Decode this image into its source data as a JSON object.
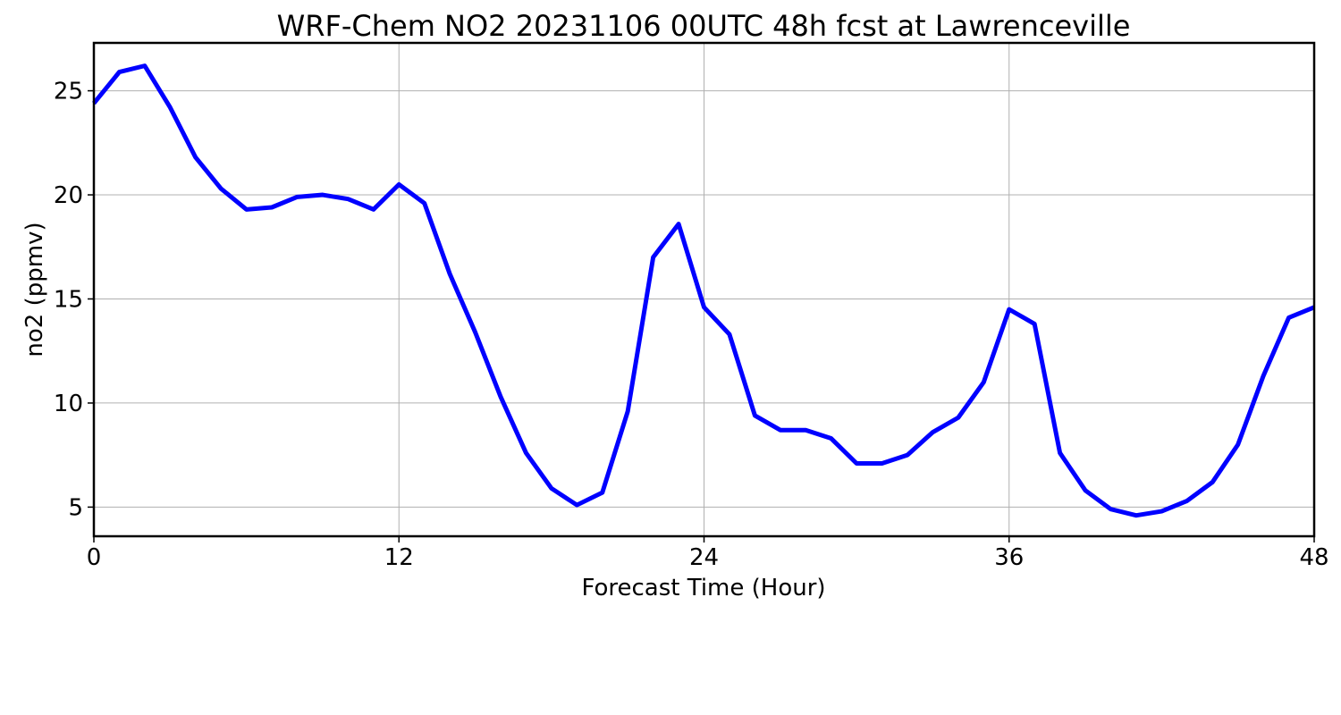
{
  "chart_data": {
    "type": "line",
    "title": "WRF-Chem NO2  20231106 00UTC 48h fcst at Lawrenceville",
    "xlabel": "Forecast Time (Hour)",
    "ylabel": "no2  (ppmv)",
    "xlim": [
      0,
      48
    ],
    "ylim": [
      3.6,
      27.3
    ],
    "xticks": [
      0,
      12,
      24,
      36,
      48
    ],
    "yticks": [
      5,
      10,
      15,
      20,
      25
    ],
    "grid": true,
    "colors": {
      "line": "#0000ff",
      "grid": "#b0b0b0",
      "frame": "#000000"
    },
    "series": [
      {
        "x": [
          0,
          1,
          2,
          3,
          4,
          5,
          6,
          7,
          8,
          9,
          10,
          11,
          12,
          13,
          14,
          15,
          16,
          17,
          18,
          19,
          20,
          21,
          22,
          23,
          24,
          25,
          26,
          27,
          28,
          29,
          30,
          31,
          32,
          33,
          34,
          35,
          36,
          37,
          38,
          39,
          40,
          41,
          42,
          43,
          44,
          45,
          46,
          47,
          48
        ],
        "values": [
          24.4,
          25.9,
          26.2,
          24.2,
          21.8,
          20.3,
          19.3,
          19.4,
          19.9,
          20.0,
          19.8,
          19.3,
          20.5,
          19.6,
          16.2,
          13.4,
          10.3,
          7.6,
          5.9,
          5.1,
          5.7,
          9.6,
          17.0,
          18.6,
          14.6,
          13.3,
          9.4,
          8.7,
          8.7,
          8.3,
          7.1,
          7.1,
          7.5,
          8.6,
          9.3,
          11.0,
          14.5,
          13.8,
          7.6,
          5.8,
          4.9,
          4.6,
          4.8,
          5.3,
          6.2,
          8.0,
          11.3,
          14.1,
          14.6
        ]
      }
    ]
  }
}
